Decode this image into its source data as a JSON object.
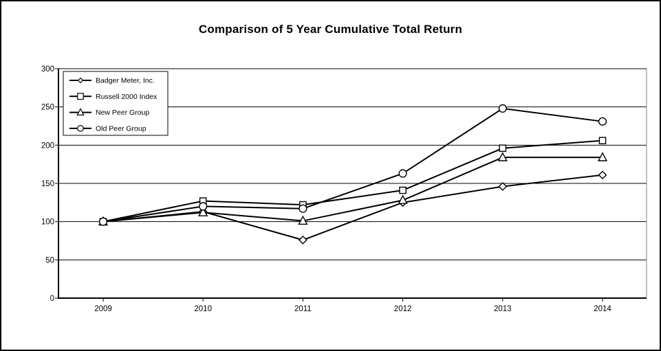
{
  "title": "Comparison of 5 Year Cumulative Total Return",
  "chart_data": {
    "type": "line",
    "title": "Comparison of 5 Year Cumulative Total Return",
    "x": [
      2009,
      2010,
      2011,
      2012,
      2013,
      2014
    ],
    "series": [
      {
        "name": "Badger Meter, Inc.",
        "marker": "diamond",
        "values": [
          100,
          113,
          76,
          125,
          146,
          161
        ]
      },
      {
        "name": "Russell 2000 Index",
        "marker": "square",
        "values": [
          100,
          127,
          122,
          141,
          196,
          206
        ]
      },
      {
        "name": "New Peer Group",
        "marker": "triangle",
        "values": [
          100,
          112,
          101,
          128,
          184,
          184
        ]
      },
      {
        "name": "Old Peer Group",
        "marker": "circle",
        "values": [
          100,
          120,
          117,
          163,
          248,
          231
        ]
      }
    ],
    "xlabel": "",
    "ylabel": "",
    "ylim": [
      0,
      300
    ],
    "yticks": [
      0,
      50,
      100,
      150,
      200,
      250,
      300
    ],
    "grid": true,
    "legend_position": "top-left",
    "line_color": "#000000",
    "marker_fill": "#ffffff",
    "background": "#ffffff"
  }
}
